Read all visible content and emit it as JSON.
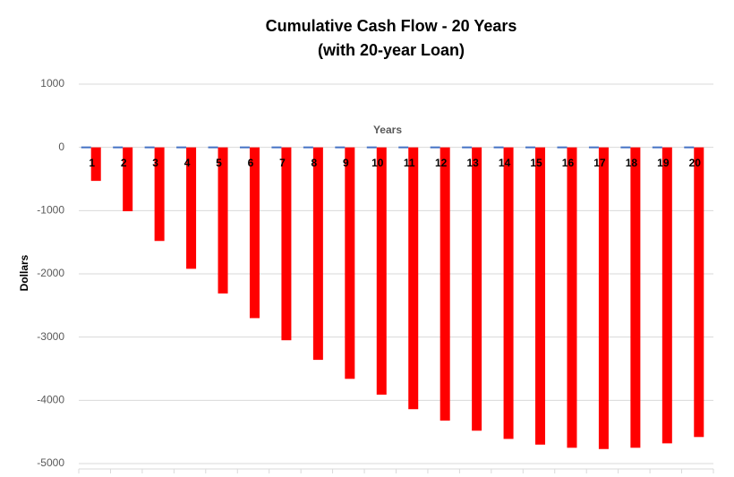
{
  "chart_data": {
    "type": "bar",
    "title": "Cumulative Cash Flow - 20 Years",
    "subtitle": "(with 20-year Loan)",
    "x_label": "Years",
    "y_label": "Dollars",
    "categories": [
      "1",
      "2",
      "3",
      "4",
      "5",
      "6",
      "7",
      "8",
      "9",
      "10",
      "11",
      "12",
      "13",
      "14",
      "15",
      "16",
      "17",
      "18",
      "19",
      "20"
    ],
    "series": [
      {
        "color": "#4472c4",
        "values": [
          0,
          0,
          0,
          0,
          0,
          0,
          0,
          0,
          0,
          0,
          0,
          0,
          0,
          0,
          0,
          0,
          0,
          0,
          0,
          0
        ]
      },
      {
        "color": "#ff0000",
        "values": [
          -530,
          -1010,
          -1480,
          -1920,
          -2310,
          -2700,
          -3050,
          -3360,
          -3660,
          -3910,
          -4140,
          -4320,
          -4480,
          -4610,
          -4700,
          -4750,
          -4770,
          -4750,
          -4680,
          -4580
        ]
      }
    ],
    "ylim": [
      -5000,
      1000
    ],
    "yticks": [
      -5000,
      -4000,
      -3000,
      -2000,
      -1000,
      0,
      1000
    ],
    "grid": true
  }
}
